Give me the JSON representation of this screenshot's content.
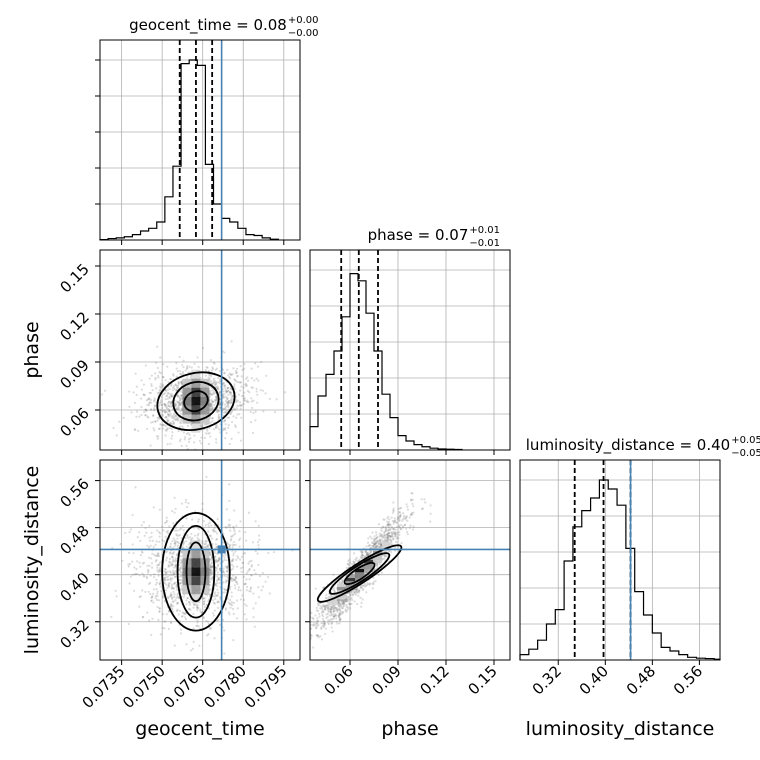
{
  "chart_data": {
    "type": "corner",
    "parameters": [
      "geocent_time",
      "phase",
      "luminosity_distance"
    ],
    "truths": {
      "geocent_time": 0.0772,
      "phase": null,
      "luminosity_distance": 0.443
    },
    "colors": {
      "truth": "#4682b4",
      "hist": "#000000",
      "grid": "#b0b0b0",
      "points": "#808080"
    },
    "grid": true,
    "diagonal": [
      {
        "param": "geocent_time",
        "title_main": "geocent_time = 0.08",
        "title_sup": "+0.00",
        "title_sub": "−0.00",
        "xlim": [
          0.0727,
          0.0801
        ],
        "quantiles": [
          0.07565,
          0.07625,
          0.07685
        ],
        "bins": [
          [
            0.0727,
            0.073,
            0.002
          ],
          [
            0.073,
            0.0733,
            0.008
          ],
          [
            0.0733,
            0.0736,
            0.012
          ],
          [
            0.0736,
            0.0739,
            0.018
          ],
          [
            0.0739,
            0.0742,
            0.03
          ],
          [
            0.0742,
            0.0745,
            0.05
          ],
          [
            0.0745,
            0.0748,
            0.065
          ],
          [
            0.0748,
            0.0751,
            0.1
          ],
          [
            0.0751,
            0.0754,
            0.24
          ],
          [
            0.0754,
            0.0757,
            0.41
          ],
          [
            0.0757,
            0.076,
            0.98
          ],
          [
            0.076,
            0.0763,
            1.0
          ],
          [
            0.0763,
            0.0766,
            0.97
          ],
          [
            0.0766,
            0.0769,
            0.42
          ],
          [
            0.0769,
            0.0772,
            0.2
          ],
          [
            0.0772,
            0.0775,
            0.12
          ],
          [
            0.0775,
            0.0778,
            0.1
          ],
          [
            0.0778,
            0.0781,
            0.065
          ],
          [
            0.0781,
            0.0784,
            0.03
          ],
          [
            0.0784,
            0.0787,
            0.025
          ],
          [
            0.0787,
            0.079,
            0.012
          ],
          [
            0.079,
            0.0793,
            0.004
          ]
        ]
      },
      {
        "param": "phase",
        "title_main": "phase = 0.07",
        "title_sup": "+0.01",
        "title_sub": "−0.01",
        "xlim": [
          0.035,
          0.16
        ],
        "quantiles": [
          0.0545,
          0.0655,
          0.0775
        ],
        "bins": [
          [
            0.035,
            0.04,
            0.13
          ],
          [
            0.04,
            0.045,
            0.3
          ],
          [
            0.045,
            0.05,
            0.42
          ],
          [
            0.05,
            0.055,
            0.55
          ],
          [
            0.055,
            0.06,
            0.74
          ],
          [
            0.06,
            0.065,
            0.98
          ],
          [
            0.065,
            0.07,
            0.94
          ],
          [
            0.07,
            0.075,
            0.76
          ],
          [
            0.075,
            0.08,
            0.55
          ],
          [
            0.08,
            0.085,
            0.31
          ],
          [
            0.085,
            0.09,
            0.18
          ],
          [
            0.09,
            0.095,
            0.08
          ],
          [
            0.095,
            0.1,
            0.05
          ],
          [
            0.1,
            0.105,
            0.03
          ],
          [
            0.105,
            0.11,
            0.018
          ],
          [
            0.11,
            0.115,
            0.01
          ],
          [
            0.115,
            0.12,
            0.006
          ],
          [
            0.12,
            0.125,
            0.004
          ],
          [
            0.125,
            0.13,
            0.003
          ]
        ]
      },
      {
        "param": "luminosity_distance",
        "title_main": "luminosity_distance = 0.40",
        "title_sup": "+0.05",
        "title_sub": "−0.05",
        "xlim": [
          0.255,
          0.595
        ],
        "quantiles": [
          0.348,
          0.397,
          0.443
        ],
        "bins": [
          [
            0.255,
            0.27,
            0.03
          ],
          [
            0.27,
            0.285,
            0.06
          ],
          [
            0.285,
            0.3,
            0.11
          ],
          [
            0.3,
            0.315,
            0.2
          ],
          [
            0.315,
            0.33,
            0.28
          ],
          [
            0.33,
            0.345,
            0.55
          ],
          [
            0.345,
            0.36,
            0.74
          ],
          [
            0.36,
            0.375,
            0.83
          ],
          [
            0.375,
            0.39,
            0.9
          ],
          [
            0.39,
            0.405,
            1.0
          ],
          [
            0.405,
            0.42,
            0.95
          ],
          [
            0.42,
            0.435,
            0.86
          ],
          [
            0.435,
            0.45,
            0.62
          ],
          [
            0.45,
            0.465,
            0.38
          ],
          [
            0.465,
            0.48,
            0.25
          ],
          [
            0.48,
            0.495,
            0.15
          ],
          [
            0.495,
            0.51,
            0.07
          ],
          [
            0.51,
            0.525,
            0.05
          ],
          [
            0.525,
            0.54,
            0.03
          ],
          [
            0.54,
            0.555,
            0.015
          ],
          [
            0.555,
            0.57,
            0.01
          ],
          [
            0.57,
            0.585,
            0.008
          ],
          [
            0.585,
            0.595,
            0.004
          ]
        ]
      }
    ],
    "scatter_panels": [
      {
        "x_param": "geocent_time",
        "y_param": "phase",
        "xlim": [
          0.0727,
          0.0801
        ],
        "ylim": [
          0.035,
          0.16
        ],
        "center": [
          0.07625,
          0.0655
        ],
        "spread": [
          0.00085,
          0.0105
        ],
        "corr": 0.15,
        "truth_x": 0.0772,
        "truth_y": null,
        "contours": [
          {
            "rx": 0.00045,
            "ry": 0.006,
            "rot": -0.4
          },
          {
            "rx": 0.00085,
            "ry": 0.0118,
            "rot": -0.3
          },
          {
            "rx": 0.00145,
            "ry": 0.0175,
            "rot": -0.25
          }
        ]
      },
      {
        "x_param": "geocent_time",
        "y_param": "luminosity_distance",
        "xlim": [
          0.0727,
          0.0801
        ],
        "ylim": [
          0.255,
          0.595
        ],
        "center": [
          0.07625,
          0.405
        ],
        "spread": [
          0.0009,
          0.045
        ],
        "corr": 0.0,
        "truth_x": 0.0772,
        "truth_y": 0.443,
        "contours": [
          {
            "rx": 0.00035,
            "ry": 0.05,
            "rot": 0
          },
          {
            "rx": 0.00068,
            "ry": 0.078,
            "rot": 0
          },
          {
            "rx": 0.00125,
            "ry": 0.1,
            "rot": 0
          }
        ]
      },
      {
        "x_param": "phase",
        "y_param": "luminosity_distance",
        "xlim": [
          0.035,
          0.16
        ],
        "ylim": [
          0.255,
          0.595
        ],
        "center": [
          0.066,
          0.402
        ],
        "spread": [
          0.0125,
          0.048
        ],
        "corr": 0.93,
        "truth_x": null,
        "truth_y": 0.443,
        "contours": [
          {
            "rx": 0.011,
            "ry": 0.009,
            "rot": -0.58
          },
          {
            "rx": 0.022,
            "ry": 0.013,
            "rot": -0.58
          },
          {
            "rx": 0.031,
            "ry": 0.016,
            "rot": -0.58
          }
        ]
      }
    ],
    "ticks": {
      "geocent_time": {
        "values": [
          0.0735,
          0.075,
          0.0765,
          0.078,
          0.0795
        ],
        "labels": [
          "0.0735",
          "0.0750",
          "0.0765",
          "0.0780",
          "0.0795"
        ]
      },
      "phase": {
        "values": [
          0.06,
          0.09,
          0.12,
          0.15
        ],
        "labels": [
          "0.06",
          "0.09",
          "0.12",
          "0.15"
        ]
      },
      "luminosity_distance": {
        "values": [
          0.32,
          0.4,
          0.48,
          0.56
        ],
        "labels": [
          "0.32",
          "0.40",
          "0.48",
          "0.56"
        ]
      }
    },
    "axis_labels": {
      "geocent_time": "geocent_time",
      "phase": "phase",
      "luminosity_distance": "luminosity_distance"
    }
  }
}
